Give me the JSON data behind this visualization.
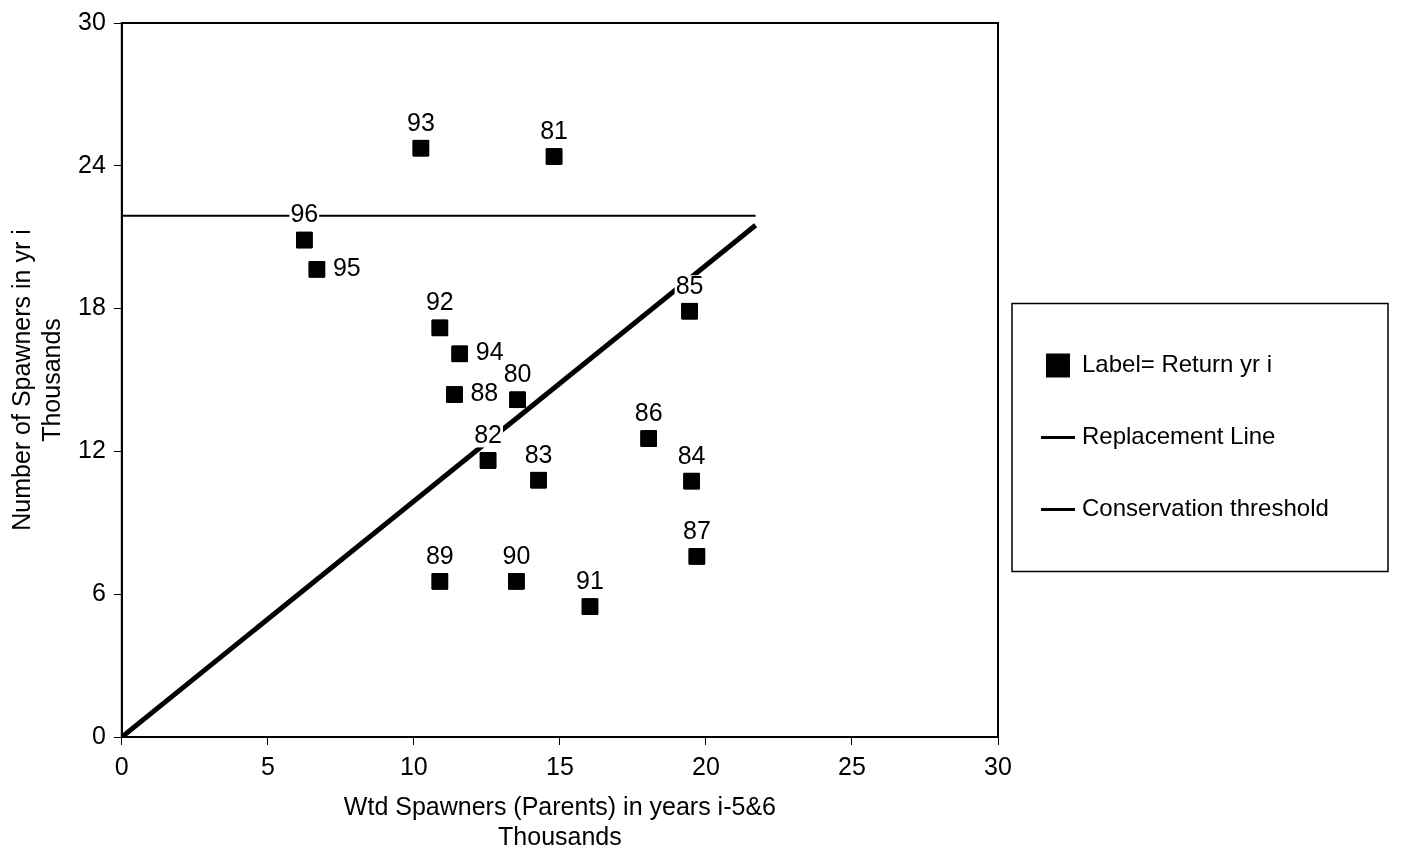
{
  "chart_data": {
    "type": "scatter",
    "xlabel": "Wtd Spawners (Parents) in years i-5&6\nThousands",
    "ylabel": "Number of Spawners in yr i\nThousands",
    "xlim": [
      0,
      30
    ],
    "xticks": [
      0,
      5,
      10,
      15,
      20,
      25,
      30
    ],
    "ylim": [
      0,
      30
    ],
    "yticks": [
      0,
      6,
      12,
      18,
      24,
      30
    ],
    "grid": false,
    "legend": "right",
    "series": [
      {
        "name": "Label= Return yr i",
        "type": "scatter",
        "marker": "square",
        "color": "#000000",
        "x": [
          10.24,
          14.8,
          6.25,
          6.68,
          10.89,
          11.57,
          11.39,
          13.55,
          12.54,
          14.27,
          18.04,
          19.51,
          19.44,
          19.69,
          10.89,
          13.51,
          16.03
        ],
        "values": [
          24.74,
          24.39,
          20.88,
          19.65,
          17.19,
          16.1,
          14.39,
          14.17,
          11.62,
          10.79,
          12.54,
          10.75,
          17.89,
          7.59,
          6.54,
          6.54,
          5.48
        ]
      },
      {
        "name": "Replacement Line",
        "type": "line",
        "marker": "none",
        "color": "#000000",
        "line_style": "solid",
        "x": [
          0,
          21.7
        ],
        "values": [
          0,
          21.5
        ]
      },
      {
        "name": "Conservation threshold",
        "type": "line",
        "marker": "none",
        "color": "#000000",
        "line_style": "solid",
        "x": [
          0,
          21.7
        ],
        "values": [
          21.9,
          21.9
        ]
      }
    ],
    "annotations": [
      {
        "text": "93",
        "x": 10.24,
        "y": 24.74
      },
      {
        "text": "81",
        "x": 14.8,
        "y": 24.39
      },
      {
        "text": "96",
        "x": 6.25,
        "y": 20.88
      },
      {
        "text": "95",
        "x": 6.68,
        "y": 19.65
      },
      {
        "text": "92",
        "x": 10.89,
        "y": 17.19
      },
      {
        "text": "94",
        "x": 11.57,
        "y": 16.1
      },
      {
        "text": "88",
        "x": 11.39,
        "y": 14.39
      },
      {
        "text": "80",
        "x": 13.55,
        "y": 14.17
      },
      {
        "text": "82",
        "x": 12.54,
        "y": 11.62
      },
      {
        "text": "83",
        "x": 14.27,
        "y": 10.79
      },
      {
        "text": "86",
        "x": 18.04,
        "y": 12.54
      },
      {
        "text": "84",
        "x": 19.51,
        "y": 10.75
      },
      {
        "text": "85",
        "x": 19.44,
        "y": 17.89
      },
      {
        "text": "87",
        "x": 19.69,
        "y": 7.59
      },
      {
        "text": "89",
        "x": 10.89,
        "y": 6.54
      },
      {
        "text": "90",
        "x": 13.51,
        "y": 6.54
      },
      {
        "text": "91",
        "x": 16.03,
        "y": 5.48
      }
    ]
  }
}
